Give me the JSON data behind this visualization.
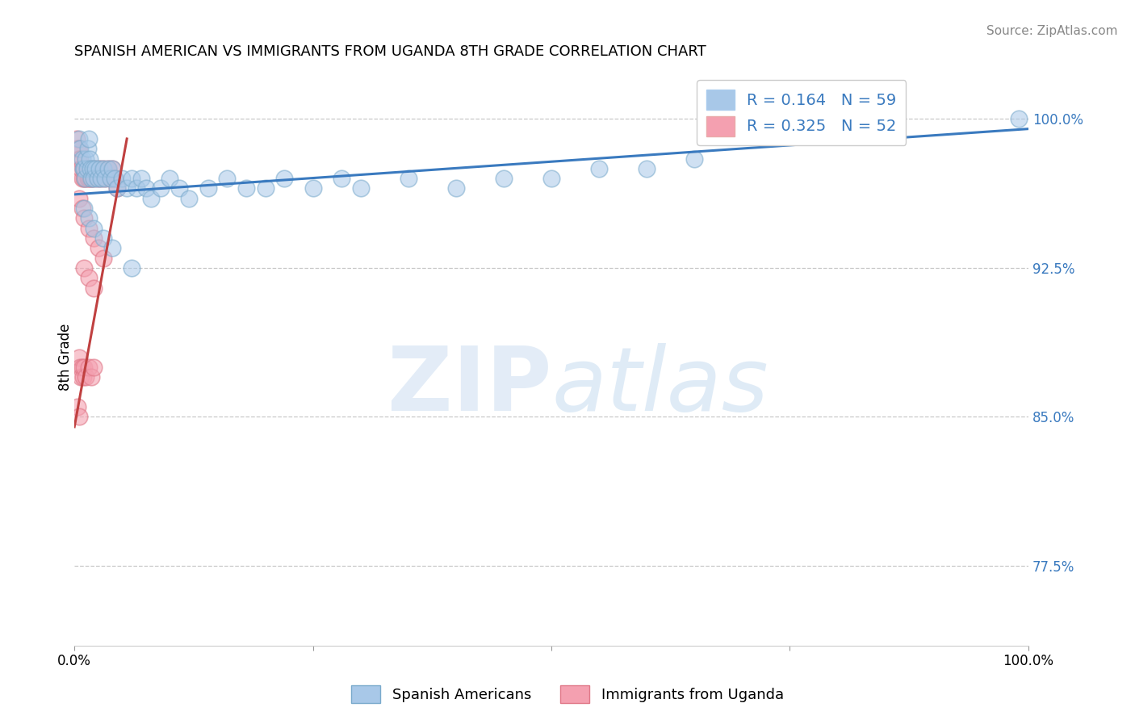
{
  "title": "SPANISH AMERICAN VS IMMIGRANTS FROM UGANDA 8TH GRADE CORRELATION CHART",
  "source": "Source: ZipAtlas.com",
  "ylabel": "8th Grade",
  "xlim": [
    0.0,
    1.0
  ],
  "ylim": [
    0.735,
    1.025
  ],
  "ytick_right": [
    1.0,
    0.925,
    0.85,
    0.775
  ],
  "ytick_right_labels": [
    "100.0%",
    "92.5%",
    "85.0%",
    "77.5%"
  ],
  "grid_color": "#c8c8c8",
  "background_color": "#ffffff",
  "legend_r_blue": "0.164",
  "legend_n_blue": "59",
  "legend_r_pink": "0.325",
  "legend_n_pink": "52",
  "blue_color": "#a8c8e8",
  "pink_color": "#f4a0b0",
  "blue_edge_color": "#7aaacc",
  "pink_edge_color": "#e07888",
  "blue_line_color": "#3a7abf",
  "pink_line_color": "#c04040",
  "title_fontsize": 13,
  "source_fontsize": 11,
  "blue_scatter_x": [
    0.005,
    0.006,
    0.008,
    0.009,
    0.01,
    0.011,
    0.012,
    0.013,
    0.014,
    0.015,
    0.016,
    0.017,
    0.018,
    0.019,
    0.02,
    0.022,
    0.024,
    0.026,
    0.028,
    0.03,
    0.032,
    0.035,
    0.038,
    0.04,
    0.042,
    0.045,
    0.05,
    0.055,
    0.06,
    0.065,
    0.07,
    0.075,
    0.08,
    0.09,
    0.1,
    0.11,
    0.12,
    0.14,
    0.16,
    0.18,
    0.2,
    0.22,
    0.25,
    0.28,
    0.3,
    0.35,
    0.4,
    0.45,
    0.5,
    0.55,
    0.6,
    0.65,
    0.01,
    0.015,
    0.02,
    0.03,
    0.04,
    0.06,
    0.99
  ],
  "blue_scatter_y": [
    0.99,
    0.985,
    0.98,
    0.975,
    0.975,
    0.97,
    0.98,
    0.975,
    0.985,
    0.99,
    0.98,
    0.975,
    0.97,
    0.975,
    0.97,
    0.975,
    0.97,
    0.975,
    0.97,
    0.975,
    0.97,
    0.975,
    0.97,
    0.975,
    0.97,
    0.965,
    0.97,
    0.965,
    0.97,
    0.965,
    0.97,
    0.965,
    0.96,
    0.965,
    0.97,
    0.965,
    0.96,
    0.965,
    0.97,
    0.965,
    0.965,
    0.97,
    0.965,
    0.97,
    0.965,
    0.97,
    0.965,
    0.97,
    0.97,
    0.975,
    0.975,
    0.98,
    0.955,
    0.95,
    0.945,
    0.94,
    0.935,
    0.925,
    1.0
  ],
  "pink_scatter_x": [
    0.002,
    0.003,
    0.004,
    0.005,
    0.006,
    0.007,
    0.008,
    0.009,
    0.01,
    0.011,
    0.012,
    0.013,
    0.014,
    0.015,
    0.016,
    0.017,
    0.018,
    0.019,
    0.02,
    0.022,
    0.024,
    0.026,
    0.028,
    0.03,
    0.032,
    0.035,
    0.038,
    0.04,
    0.042,
    0.045,
    0.005,
    0.008,
    0.01,
    0.015,
    0.02,
    0.025,
    0.03,
    0.01,
    0.015,
    0.02,
    0.005,
    0.006,
    0.007,
    0.008,
    0.009,
    0.01,
    0.012,
    0.015,
    0.018,
    0.02,
    0.003,
    0.005
  ],
  "pink_scatter_y": [
    0.99,
    0.985,
    0.98,
    0.985,
    0.98,
    0.975,
    0.97,
    0.975,
    0.97,
    0.975,
    0.97,
    0.975,
    0.97,
    0.975,
    0.97,
    0.975,
    0.97,
    0.975,
    0.97,
    0.975,
    0.97,
    0.975,
    0.97,
    0.975,
    0.97,
    0.975,
    0.97,
    0.975,
    0.97,
    0.965,
    0.96,
    0.955,
    0.95,
    0.945,
    0.94,
    0.935,
    0.93,
    0.925,
    0.92,
    0.915,
    0.88,
    0.875,
    0.87,
    0.875,
    0.87,
    0.875,
    0.87,
    0.875,
    0.87,
    0.875,
    0.855,
    0.85
  ],
  "blue_trendline_x": [
    0.0,
    1.0
  ],
  "blue_trendline_y": [
    0.962,
    0.995
  ],
  "pink_trendline_x": [
    0.0,
    0.055
  ],
  "pink_trendline_y": [
    0.845,
    0.99
  ]
}
